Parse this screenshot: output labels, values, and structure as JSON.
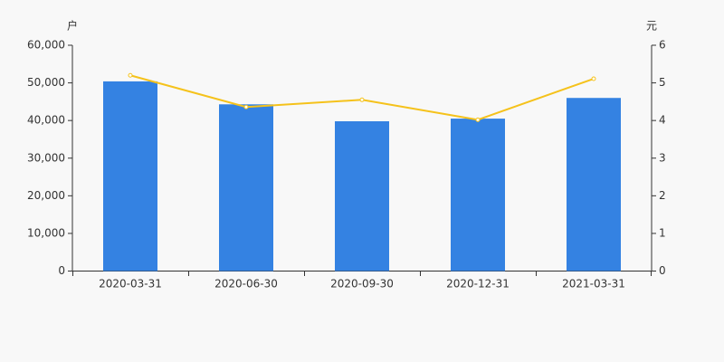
{
  "chart_data": {
    "type": "bar-line",
    "y_label": "户",
    "y2_label": "元",
    "categories": [
      "2020-03-31",
      "2020-06-30",
      "2020-09-30",
      "2020-12-31",
      "2021-03-31"
    ],
    "series": [
      {
        "type": "bar",
        "color": "#3482e2",
        "values": [
          50400,
          44300,
          39800,
          40500,
          46000
        ]
      },
      {
        "type": "line",
        "color": "#f5c21b",
        "axis": "y2",
        "values": [
          5.2,
          4.36,
          4.55,
          4.02,
          5.11
        ]
      }
    ],
    "ylim": [
      0,
      60000
    ],
    "yticks": [
      0,
      {
        "value": 10000,
        "label": "10,000"
      },
      {
        "value": 20000,
        "label": "20,000"
      },
      {
        "value": 30000,
        "label": "30,000"
      },
      {
        "value": 40000,
        "label": "40,000"
      },
      {
        "value": 50000,
        "label": "50,000"
      },
      {
        "value": 60000,
        "label": "60,000"
      }
    ],
    "y2lim": [
      0,
      6
    ],
    "y2ticks": [
      0,
      1,
      2,
      3,
      4,
      5,
      6
    ]
  }
}
